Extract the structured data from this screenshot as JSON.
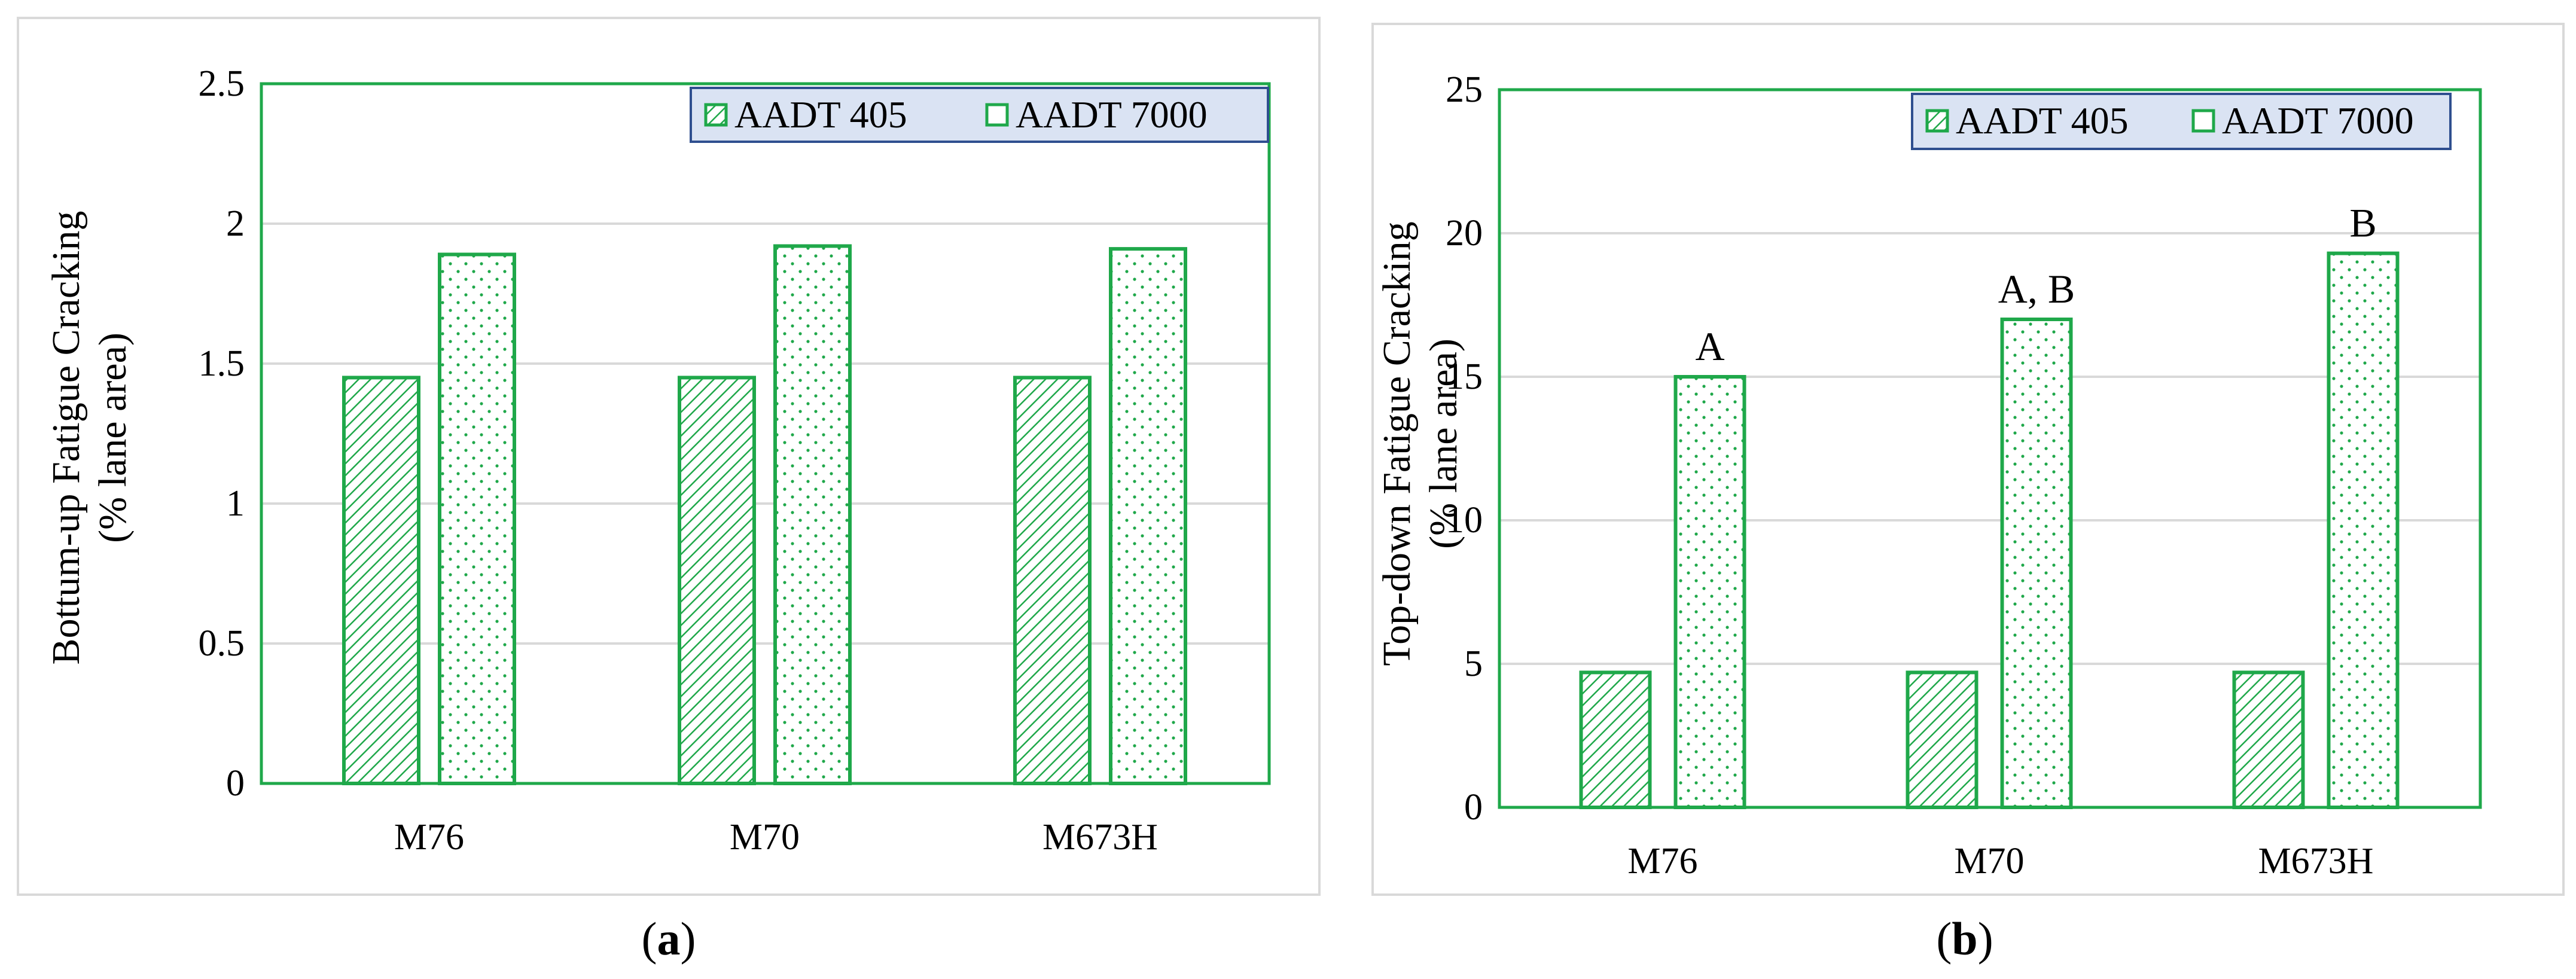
{
  "colors": {
    "bar_stroke": "#1fa84a",
    "plot_border": "#1fa84a",
    "grid": "#d9d9d9",
    "legend_bg": "#dae3f3",
    "legend_border": "#2f4f8f"
  },
  "captions": {
    "a": "a",
    "b": "b"
  },
  "chart_data": [
    {
      "type": "bar",
      "panel": "a",
      "categories": [
        "M76",
        "M70",
        "M673H"
      ],
      "series": [
        {
          "name": "AADT 405",
          "values": [
            1.45,
            1.45,
            1.45
          ],
          "pattern": "hatch"
        },
        {
          "name": "AADT 7000",
          "values": [
            1.89,
            1.92,
            1.91
          ],
          "pattern": "dots"
        }
      ],
      "ylabel": [
        "Bottum-up Fatigue Cracking",
        "(% lane area)"
      ],
      "xlabel": "",
      "ylim": [
        0,
        2.5
      ],
      "yticks": [
        "0",
        "0.5",
        "1",
        "1.5",
        "2",
        "2.5"
      ],
      "ytick_values": [
        0,
        0.5,
        1,
        1.5,
        2,
        2.5
      ],
      "annotations": [],
      "legend": "top-right",
      "grid": true
    },
    {
      "type": "bar",
      "panel": "b",
      "categories": [
        "M76",
        "M70",
        "M673H"
      ],
      "series": [
        {
          "name": "AADT 405",
          "values": [
            4.7,
            4.7,
            4.7
          ],
          "pattern": "hatch"
        },
        {
          "name": "AADT 7000",
          "values": [
            15.0,
            17.0,
            19.3
          ],
          "pattern": "dots"
        }
      ],
      "ylabel": [
        "Top-down Fatigue Cracking",
        "(% lane area)"
      ],
      "xlabel": "",
      "ylim": [
        0,
        25
      ],
      "yticks": [
        "0",
        "5",
        "10",
        "15",
        "20",
        "25"
      ],
      "ytick_values": [
        0,
        5,
        10,
        15,
        20,
        25
      ],
      "annotations": [
        "A",
        "A, B",
        "B"
      ],
      "legend": "top-right",
      "grid": true
    }
  ]
}
